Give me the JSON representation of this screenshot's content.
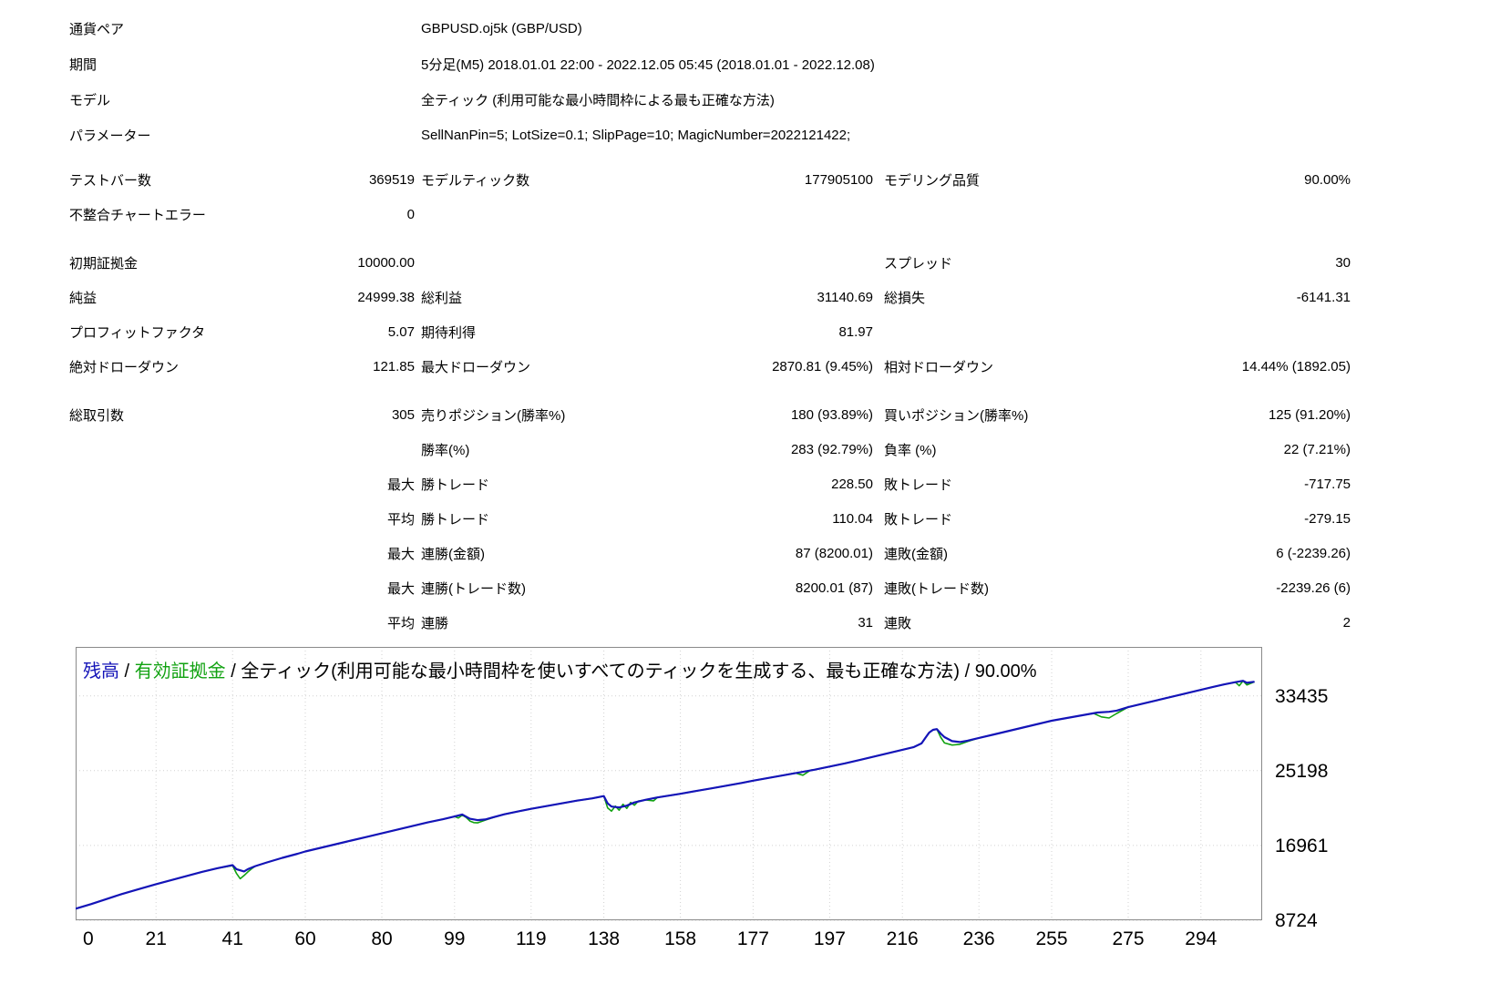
{
  "report": {
    "header_rows": [
      {
        "label": "通貨ペア",
        "value": "GBPUSD.oj5k (GBP/USD)"
      },
      {
        "label": "期間",
        "value": "5分足(M5) 2018.01.01 22:00 - 2022.12.05 05:45 (2018.01.01 - 2022.12.08)"
      },
      {
        "label": "モデル",
        "value": "全ティック (利用可能な最小時間枠による最も正確な方法)"
      },
      {
        "label": "パラメーター",
        "value": "SellNanPin=5; LotSize=0.1; SlipPage=10; MagicNumber=2022121422;"
      }
    ],
    "stat_rows": [
      {
        "c1l": "テストバー数",
        "c1v": "369519",
        "c2l": "モデルティック数",
        "c2v": "177905100",
        "c3l": "モデリング品質",
        "c3v": "90.00%"
      },
      {
        "c1l": "不整合チャートエラー",
        "c1v": "0"
      },
      {
        "spacer": true
      },
      {
        "c1l": "初期証拠金",
        "c1v": "10000.00",
        "c3l": "スプレッド",
        "c3v": "30"
      },
      {
        "c1l": "純益",
        "c1v": "24999.38",
        "c2l": "総利益",
        "c2v": "31140.69",
        "c3l": "総損失",
        "c3v": "-6141.31"
      },
      {
        "c1l": "プロフィットファクタ",
        "c1v": "5.07",
        "c2l": "期待利得",
        "c2v": "81.97"
      },
      {
        "c1l": "絶対ドローダウン",
        "c1v": "121.85",
        "c2l": "最大ドローダウン",
        "c2v": "2870.81 (9.45%)",
        "c3l": "相対ドローダウン",
        "c3v": "14.44% (1892.05)"
      },
      {
        "spacer": true
      },
      {
        "c1l": "総取引数",
        "c1v": "305",
        "c2l": "売りポジション(勝率%)",
        "c2v": "180 (93.89%)",
        "c3l": "買いポジション(勝率%)",
        "c3v": "125 (91.20%)"
      },
      {
        "c2l": "勝率(%)",
        "c2v": "283 (92.79%)",
        "c3l": "負率 (%)",
        "c3v": "22 (7.21%)"
      },
      {
        "c1v": "最大",
        "c2l": "勝トレード",
        "c2v": "228.50",
        "c3l": "敗トレード",
        "c3v": "-717.75"
      },
      {
        "c1v": "平均",
        "c2l": "勝トレード",
        "c2v": "110.04",
        "c3l": "敗トレード",
        "c3v": "-279.15"
      },
      {
        "c1v": "最大",
        "c2l": "連勝(金額)",
        "c2v": "87 (8200.01)",
        "c3l": "連敗(金額)",
        "c3v": "6 (-2239.26)"
      },
      {
        "c1v": "最大",
        "c2l": "連勝(トレード数)",
        "c2v": "8200.01 (87)",
        "c3l": "連敗(トレード数)",
        "c3v": "-2239.26 (6)"
      },
      {
        "c1v": "平均",
        "c2l": "連勝",
        "c2v": "31",
        "c3l": "連敗",
        "c3v": "2"
      }
    ]
  },
  "chart_data": {
    "type": "line",
    "title": "残高 / 有効証拠金 / 全ティック(利用可能な最小時間枠を使いすべてのティックを生成する、最も正確な方法) / 90.00%",
    "title_parts": [
      {
        "text": "残高",
        "color": "#1414b8"
      },
      {
        "text": " / ",
        "color": "#000000"
      },
      {
        "text": "有効証拠金",
        "color": "#11a211"
      },
      {
        "text": " / 全ティック(利用可能な最小時間枠を使いすべてのティックを生成する、最も正確な方法) / 90.00%",
        "color": "#000000"
      }
    ],
    "x_ticks": [
      0,
      21,
      41,
      60,
      80,
      99,
      119,
      138,
      158,
      177,
      197,
      216,
      236,
      255,
      275,
      294
    ],
    "y_ticks": [
      8724,
      16961,
      25198,
      33435
    ],
    "x_range": [
      0,
      310
    ],
    "y_range": [
      8724,
      38830
    ],
    "grid": true,
    "legend_position": "title-inline",
    "xlabel": "",
    "ylabel": "",
    "series": [
      {
        "name": "有効証拠金",
        "color": "#11a211",
        "width": 1.6,
        "points": [
          [
            0,
            10000
          ],
          [
            4,
            10500
          ],
          [
            8,
            11050
          ],
          [
            12,
            11600
          ],
          [
            16,
            12100
          ],
          [
            21,
            12700
          ],
          [
            25,
            13150
          ],
          [
            29,
            13600
          ],
          [
            33,
            14050
          ],
          [
            37,
            14450
          ],
          [
            41,
            14750
          ],
          [
            42,
            13900
          ],
          [
            43,
            13300
          ],
          [
            44,
            13650
          ],
          [
            45,
            14050
          ],
          [
            46,
            14400
          ],
          [
            47,
            14700
          ],
          [
            50,
            15100
          ],
          [
            54,
            15600
          ],
          [
            58,
            16050
          ],
          [
            60,
            16300
          ],
          [
            64,
            16700
          ],
          [
            68,
            17100
          ],
          [
            72,
            17500
          ],
          [
            76,
            17900
          ],
          [
            80,
            18300
          ],
          [
            84,
            18700
          ],
          [
            88,
            19100
          ],
          [
            92,
            19500
          ],
          [
            96,
            19850
          ],
          [
            99,
            20150
          ],
          [
            100,
            19980
          ],
          [
            101,
            20300
          ],
          [
            102,
            20050
          ],
          [
            103,
            19650
          ],
          [
            104,
            19480
          ],
          [
            105,
            19450
          ],
          [
            106,
            19600
          ],
          [
            107,
            19750
          ],
          [
            109,
            20020
          ],
          [
            112,
            20400
          ],
          [
            116,
            20750
          ],
          [
            119,
            21000
          ],
          [
            123,
            21300
          ],
          [
            127,
            21600
          ],
          [
            131,
            21900
          ],
          [
            135,
            22150
          ],
          [
            138,
            22400
          ],
          [
            139,
            21100
          ],
          [
            140,
            20750
          ],
          [
            141,
            21300
          ],
          [
            142,
            20850
          ],
          [
            143,
            21500
          ],
          [
            144,
            21050
          ],
          [
            145,
            21700
          ],
          [
            146,
            21400
          ],
          [
            147,
            21850
          ],
          [
            149,
            21980
          ],
          [
            151,
            21880
          ],
          [
            152,
            22250
          ],
          [
            155,
            22450
          ],
          [
            158,
            22650
          ],
          [
            162,
            22950
          ],
          [
            166,
            23250
          ],
          [
            170,
            23550
          ],
          [
            174,
            23850
          ],
          [
            177,
            24100
          ],
          [
            181,
            24400
          ],
          [
            185,
            24700
          ],
          [
            188,
            24950
          ],
          [
            190,
            24700
          ],
          [
            192,
            25250
          ],
          [
            193,
            25300
          ],
          [
            197,
            25650
          ],
          [
            201,
            26000
          ],
          [
            205,
            26400
          ],
          [
            209,
            26800
          ],
          [
            213,
            27200
          ],
          [
            216,
            27500
          ],
          [
            219,
            27800
          ],
          [
            221,
            28200
          ],
          [
            222,
            28800
          ],
          [
            223,
            29400
          ],
          [
            224,
            29700
          ],
          [
            225,
            29780
          ],
          [
            226,
            28900
          ],
          [
            227,
            28250
          ],
          [
            229,
            28020
          ],
          [
            231,
            28100
          ],
          [
            233,
            28400
          ],
          [
            236,
            28800
          ],
          [
            240,
            29200
          ],
          [
            244,
            29600
          ],
          [
            248,
            30000
          ],
          [
            252,
            30400
          ],
          [
            255,
            30700
          ],
          [
            259,
            31000
          ],
          [
            263,
            31300
          ],
          [
            266,
            31500
          ],
          [
            268,
            31120
          ],
          [
            270,
            31000
          ],
          [
            272,
            31500
          ],
          [
            275,
            32200
          ],
          [
            279,
            32600
          ],
          [
            283,
            33000
          ],
          [
            287,
            33400
          ],
          [
            291,
            33800
          ],
          [
            294,
            34100
          ],
          [
            297,
            34400
          ],
          [
            300,
            34700
          ],
          [
            303,
            34950
          ],
          [
            304,
            34550
          ],
          [
            305,
            35100
          ],
          [
            306,
            34650
          ],
          [
            308,
            34999
          ]
        ]
      },
      {
        "name": "残高",
        "color": "#1414b8",
        "width": 2.2,
        "points": [
          [
            0,
            10000
          ],
          [
            4,
            10500
          ],
          [
            8,
            11050
          ],
          [
            12,
            11600
          ],
          [
            16,
            12100
          ],
          [
            21,
            12700
          ],
          [
            25,
            13150
          ],
          [
            29,
            13600
          ],
          [
            33,
            14050
          ],
          [
            37,
            14450
          ],
          [
            41,
            14800
          ],
          [
            42,
            14350
          ],
          [
            44,
            14100
          ],
          [
            45,
            14350
          ],
          [
            47,
            14700
          ],
          [
            50,
            15100
          ],
          [
            54,
            15600
          ],
          [
            58,
            16050
          ],
          [
            60,
            16300
          ],
          [
            64,
            16700
          ],
          [
            68,
            17100
          ],
          [
            72,
            17500
          ],
          [
            76,
            17900
          ],
          [
            80,
            18300
          ],
          [
            84,
            18700
          ],
          [
            88,
            19100
          ],
          [
            92,
            19500
          ],
          [
            96,
            19850
          ],
          [
            99,
            20150
          ],
          [
            101,
            20380
          ],
          [
            103,
            19900
          ],
          [
            105,
            19750
          ],
          [
            107,
            19820
          ],
          [
            109,
            20050
          ],
          [
            112,
            20400
          ],
          [
            116,
            20750
          ],
          [
            119,
            21000
          ],
          [
            123,
            21300
          ],
          [
            127,
            21600
          ],
          [
            131,
            21900
          ],
          [
            135,
            22150
          ],
          [
            138,
            22400
          ],
          [
            139,
            21600
          ],
          [
            140,
            21250
          ],
          [
            142,
            21150
          ],
          [
            144,
            21350
          ],
          [
            146,
            21700
          ],
          [
            149,
            22000
          ],
          [
            152,
            22250
          ],
          [
            155,
            22450
          ],
          [
            158,
            22650
          ],
          [
            162,
            22950
          ],
          [
            166,
            23250
          ],
          [
            170,
            23550
          ],
          [
            174,
            23850
          ],
          [
            177,
            24100
          ],
          [
            181,
            24400
          ],
          [
            185,
            24700
          ],
          [
            189,
            25000
          ],
          [
            193,
            25300
          ],
          [
            197,
            25650
          ],
          [
            201,
            26000
          ],
          [
            205,
            26400
          ],
          [
            209,
            26800
          ],
          [
            213,
            27200
          ],
          [
            216,
            27500
          ],
          [
            219,
            27800
          ],
          [
            221,
            28200
          ],
          [
            222,
            28800
          ],
          [
            223,
            29400
          ],
          [
            224,
            29700
          ],
          [
            225,
            29780
          ],
          [
            226,
            29300
          ],
          [
            227,
            28900
          ],
          [
            229,
            28450
          ],
          [
            231,
            28350
          ],
          [
            233,
            28500
          ],
          [
            236,
            28800
          ],
          [
            240,
            29200
          ],
          [
            244,
            29600
          ],
          [
            248,
            30000
          ],
          [
            252,
            30400
          ],
          [
            255,
            30700
          ],
          [
            259,
            31000
          ],
          [
            263,
            31300
          ],
          [
            267,
            31600
          ],
          [
            270,
            31680
          ],
          [
            272,
            31820
          ],
          [
            275,
            32200
          ],
          [
            279,
            32600
          ],
          [
            283,
            33000
          ],
          [
            287,
            33400
          ],
          [
            291,
            33800
          ],
          [
            294,
            34100
          ],
          [
            297,
            34400
          ],
          [
            300,
            34700
          ],
          [
            303,
            34950
          ],
          [
            305,
            35100
          ],
          [
            306,
            34880
          ],
          [
            308,
            34999
          ]
        ]
      }
    ]
  }
}
